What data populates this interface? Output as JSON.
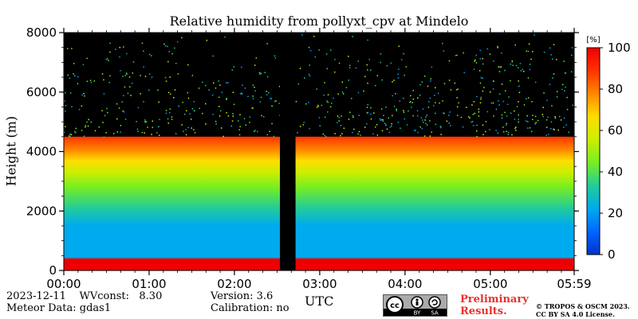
{
  "chart_data": {
    "type": "heatmap",
    "title": "Relative humidity from pollyxt_cpv at Mindelo",
    "ylabel": "Height (m)",
    "xlabel": "UTC",
    "ylim": [
      0,
      8000
    ],
    "y_ticks": [
      "0",
      "2000",
      "4000",
      "6000",
      "8000"
    ],
    "x_range": [
      "00:00",
      "05:59"
    ],
    "x_ticks": [
      "00:00",
      "01:00",
      "02:00",
      "03:00",
      "04:00",
      "05:00",
      "05:59"
    ],
    "colorbar": {
      "unit": "[%]",
      "range": [
        0,
        100
      ],
      "ticks": [
        "0",
        "20",
        "40",
        "60",
        "80",
        "100"
      ]
    },
    "data_gap": {
      "start": "02:32",
      "end": "02:43"
    },
    "profile_features": {
      "near_surface_humid_layer_top_m": 400,
      "moist_layer_top_m": 4500,
      "above_moist_layer": "mostly no data"
    }
  },
  "info": {
    "date": "2023-12-11",
    "wvconst_label": "WVconst:",
    "wvconst_value": "8.30",
    "meteor_data": "Meteor Data: gdas1",
    "version": "Version: 3.6",
    "calibration": "Calibration: no"
  },
  "footer": {
    "prelim_line1": "Preliminary",
    "prelim_line2": "Results.",
    "copyright_line1": "© TROPOS & OSCM 2023.",
    "copyright_line2": "CC BY SA 4.0 License.",
    "cc_label_1": "BY",
    "cc_label_2": "SA"
  },
  "colors": {
    "background_nodata": "#000000",
    "colormap": [
      "#0033cc",
      "#0066ff",
      "#00aaee",
      "#22cc99",
      "#77ee22",
      "#ccee00",
      "#ffdd00",
      "#ff8800",
      "#ff3300",
      "#ee0000"
    ],
    "prelim": "#e8312c"
  }
}
